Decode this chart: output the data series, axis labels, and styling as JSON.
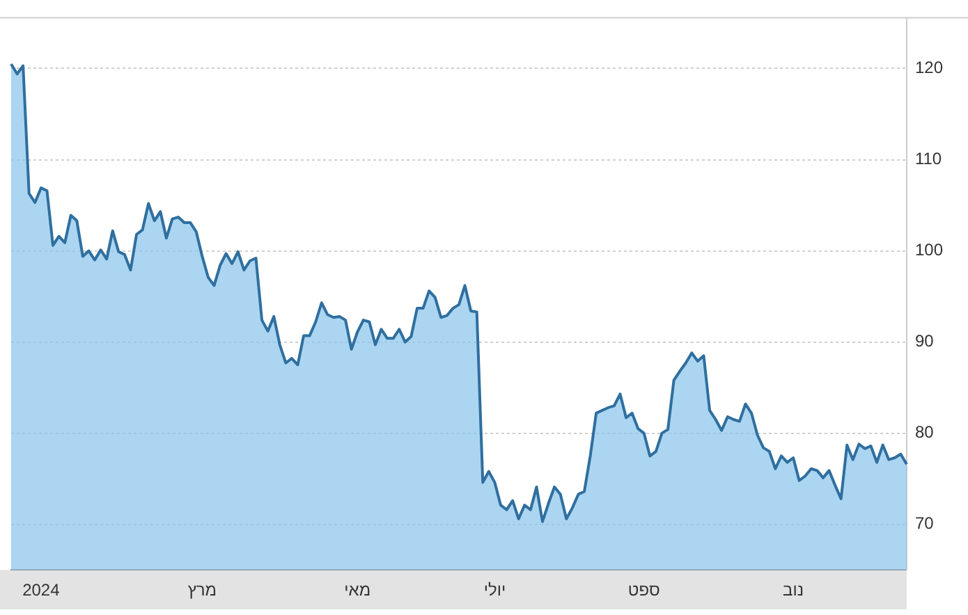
{
  "chart_data": {
    "type": "area",
    "color": "#2f6f9f",
    "categories": [
      null,
      null,
      null,
      null,
      null,
      "2024",
      null,
      null,
      null,
      null,
      null,
      null,
      null,
      null,
      null,
      null,
      null,
      null,
      null,
      null,
      null,
      null,
      null,
      null,
      null,
      null,
      null,
      null,
      null,
      null,
      null,
      null,
      "מרץ",
      null,
      null,
      null,
      null,
      null,
      null,
      null,
      null,
      null,
      null,
      null,
      null,
      null,
      null,
      null,
      null,
      null,
      null,
      null,
      null,
      null,
      null,
      null,
      null,
      null,
      "מאי",
      null,
      null,
      null,
      null,
      null,
      null,
      null,
      null,
      null,
      null,
      null,
      null,
      null,
      null,
      null,
      null,
      null,
      null,
      null,
      null,
      null,
      null,
      "יולי",
      null,
      null,
      null,
      null,
      null,
      null,
      null,
      null,
      null,
      null,
      null,
      null,
      null,
      null,
      null,
      null,
      null,
      null,
      null,
      null,
      null,
      null,
      null,
      null,
      "ספט",
      null,
      null,
      null,
      null,
      null,
      null,
      null,
      null,
      null,
      null,
      null,
      null,
      null,
      null,
      null,
      null,
      null,
      null,
      null,
      null,
      null,
      null,
      null,
      null,
      "נוב",
      null,
      null,
      null,
      null,
      null,
      null,
      null,
      null,
      null,
      null,
      null,
      null,
      null,
      null,
      null,
      null,
      null,
      null,
      null
    ],
    "values": [
      120.5,
      119.4,
      120.3,
      106.3,
      105.3,
      106.9,
      106.6,
      100.6,
      101.6,
      100.9,
      103.9,
      103.3,
      99.4,
      100.0,
      99.0,
      100.1,
      99.1,
      102.2,
      99.9,
      99.6,
      97.9,
      101.8,
      102.3,
      105.2,
      103.3,
      104.3,
      101.4,
      103.5,
      103.7,
      103.1,
      103.1,
      102.1,
      99.4,
      97.1,
      96.2,
      98.4,
      99.7,
      98.6,
      99.9,
      97.9,
      98.9,
      99.2,
      92.4,
      91.2,
      92.8,
      89.7,
      87.7,
      88.2,
      87.5,
      90.7,
      90.7,
      92.2,
      94.3,
      93.0,
      92.7,
      92.8,
      92.4,
      89.2,
      91.1,
      92.4,
      92.2,
      89.7,
      91.4,
      90.4,
      90.4,
      91.4,
      90.0,
      90.6,
      93.7,
      93.7,
      95.6,
      94.9,
      92.7,
      92.9,
      93.7,
      94.1,
      96.2,
      93.4,
      93.3,
      74.6,
      75.8,
      74.6,
      72.1,
      71.6,
      72.6,
      70.6,
      72.1,
      71.6,
      74.1,
      70.3,
      72.3,
      74.1,
      73.3,
      70.6,
      71.8,
      73.3,
      73.6,
      77.5,
      82.2,
      82.5,
      82.8,
      83.0,
      84.3,
      81.7,
      82.2,
      80.5,
      80.0,
      77.5,
      78.0,
      80.0,
      80.4,
      85.8,
      86.8,
      87.7,
      88.8,
      87.9,
      88.5,
      82.5,
      81.5,
      80.3,
      81.8,
      81.5,
      81.3,
      83.2,
      82.2,
      79.8,
      78.4,
      78.0,
      76.1,
      77.5,
      76.8,
      77.3,
      74.8,
      75.3,
      76.1,
      75.9,
      75.1,
      75.9,
      74.3,
      72.8,
      78.7,
      77.1,
      78.8,
      78.3,
      78.6,
      76.8,
      78.7,
      77.1,
      77.3,
      77.7,
      76.6
    ],
    "ylim": [
      65,
      125.5
    ],
    "yticks": [
      70,
      80,
      90,
      100,
      110,
      120
    ],
    "grid": "y",
    "legend": false,
    "marker": "none",
    "line_style": "solid"
  }
}
